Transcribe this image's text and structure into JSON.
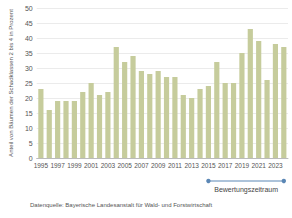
{
  "chart_data": {
    "type": "bar",
    "y_label": "Anteil von Bäumen der Schadklassen 2 bis 4 in Prozent",
    "source": "Datenquelle: Bayerische Landesanstalt für Wald- und Forstwirtschaft",
    "categories": [
      "1995",
      null,
      "1997",
      null,
      "1999",
      null,
      "2001",
      null,
      "2003",
      null,
      "2005",
      null,
      "2007",
      null,
      "2009",
      null,
      "2011",
      null,
      "2013",
      null,
      "2015",
      null,
      "2017",
      null,
      "2019",
      null,
      "2021",
      null,
      "2023",
      null
    ],
    "values": [
      23,
      16,
      19,
      19,
      19,
      22,
      25,
      21,
      22,
      37,
      32,
      34,
      29,
      28,
      29,
      27,
      27,
      21,
      20,
      23,
      24,
      32,
      25,
      25,
      35,
      43,
      39,
      26,
      38,
      37
    ],
    "color": "#c6cc9c",
    "ylim": [
      0,
      50
    ],
    "yticks": [
      0,
      5,
      10,
      15,
      20,
      25,
      30,
      35,
      40,
      45,
      50
    ],
    "grid": true,
    "annotations": [
      {
        "text": "Bewertungszeitraum",
        "x_start": 20,
        "x_end": 29,
        "color": "#5b87b5"
      }
    ]
  }
}
